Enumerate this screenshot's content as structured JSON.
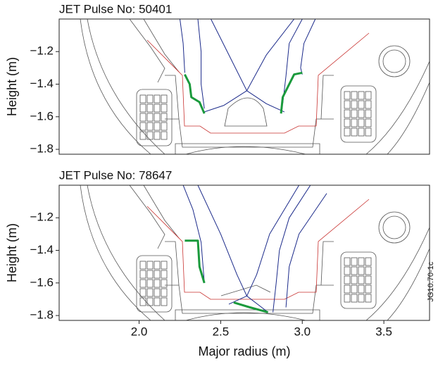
{
  "figure_id": "JG10.70-1c",
  "chart_data": [
    {
      "type": "line",
      "title": "JET Pulse No: 50401",
      "ylabel": "Height (m)",
      "xlim": [
        1.51,
        3.78
      ],
      "ylim": [
        -1.83,
        -1.0
      ],
      "yticks": [
        {
          "value": -1.2,
          "label": "−1.2"
        },
        {
          "value": -1.4,
          "label": "−1.4"
        },
        {
          "value": -1.6,
          "label": "−1.6"
        },
        {
          "value": -1.8,
          "label": "−1.8"
        }
      ],
      "series": [
        {
          "color": "#1b2a8a",
          "line_width": 1,
          "x": [
            2.25,
            2.27,
            2.28
          ],
          "values": [
            -1.0,
            -1.15,
            -1.33
          ]
        },
        {
          "color": "#1b2a8a",
          "line_width": 1,
          "x": [
            2.36,
            2.38,
            2.38,
            2.4
          ],
          "values": [
            -1.0,
            -1.2,
            -1.4,
            -1.55
          ]
        },
        {
          "color": "#1b2a8a",
          "line_width": 1,
          "x": [
            2.44,
            2.55,
            2.66,
            2.78,
            2.89
          ],
          "values": [
            -1.0,
            -1.22,
            -1.44,
            -1.52,
            -1.57
          ]
        },
        {
          "color": "#1b2a8a",
          "line_width": 1,
          "x": [
            2.95,
            2.78,
            2.66,
            2.52,
            2.4
          ],
          "values": [
            -1.0,
            -1.22,
            -1.44,
            -1.53,
            -1.57
          ]
        },
        {
          "color": "#1b2a8a",
          "line_width": 1,
          "x": [
            3.0,
            2.92,
            2.9,
            2.88
          ],
          "values": [
            -1.0,
            -1.15,
            -1.35,
            -1.52
          ]
        },
        {
          "color": "#1b2a8a",
          "line_width": 1,
          "x": [
            3.08,
            3.01,
            2.99,
            3.0
          ],
          "values": [
            -1.0,
            -1.15,
            -1.3,
            -1.34
          ]
        },
        {
          "color": "#1a9a3c",
          "line_width": 3,
          "x": [
            2.28,
            2.31,
            2.32,
            2.37,
            2.4
          ],
          "values": [
            -1.34,
            -1.4,
            -1.48,
            -1.51,
            -1.58
          ]
        },
        {
          "color": "#1a9a3c",
          "line_width": 3,
          "x": [
            3.0,
            2.95,
            2.91,
            2.88,
            2.87
          ],
          "values": [
            -1.33,
            -1.34,
            -1.42,
            -1.48,
            -1.58
          ]
        }
      ]
    },
    {
      "type": "line",
      "title": "JET Pulse No: 78647",
      "ylabel": "Height (m)",
      "xlabel": "Major radius (m)",
      "xlim": [
        1.51,
        3.78
      ],
      "ylim": [
        -1.83,
        -1.0
      ],
      "xticks": [
        {
          "value": 2.0,
          "label": "2.0"
        },
        {
          "value": 2.5,
          "label": "2.5"
        },
        {
          "value": 3.0,
          "label": "3.0"
        },
        {
          "value": 3.5,
          "label": "3.5"
        }
      ],
      "yticks": [
        {
          "value": -1.2,
          "label": "−1.2"
        },
        {
          "value": -1.4,
          "label": "−1.4"
        },
        {
          "value": -1.6,
          "label": "−1.6"
        },
        {
          "value": -1.8,
          "label": "−1.8"
        }
      ],
      "series": [
        {
          "color": "#1b2a8a",
          "line_width": 1,
          "x": [
            2.27,
            2.33,
            2.38,
            2.4
          ],
          "values": [
            -1.0,
            -1.15,
            -1.35,
            -1.6
          ]
        },
        {
          "color": "#1b2a8a",
          "line_width": 1,
          "x": [
            2.36,
            2.5,
            2.6,
            2.66,
            2.79
          ],
          "values": [
            -1.0,
            -1.3,
            -1.55,
            -1.68,
            -1.78
          ]
        },
        {
          "color": "#1b2a8a",
          "line_width": 1,
          "x": [
            2.98,
            2.8,
            2.72,
            2.66,
            2.55
          ],
          "values": [
            -1.0,
            -1.3,
            -1.55,
            -1.68,
            -1.73
          ]
        },
        {
          "color": "#1b2a8a",
          "line_width": 1,
          "x": [
            3.05,
            2.92,
            2.86,
            2.84,
            2.82
          ],
          "values": [
            -1.0,
            -1.2,
            -1.4,
            -1.6,
            -1.78
          ]
        },
        {
          "color": "#1b2a8a",
          "line_width": 1,
          "x": [
            3.15,
            2.98,
            2.92,
            2.9
          ],
          "values": [
            -1.05,
            -1.3,
            -1.5,
            -1.75
          ]
        },
        {
          "color": "#1a9a3c",
          "line_width": 3,
          "x": [
            2.28,
            2.36,
            2.37,
            2.4
          ],
          "values": [
            -1.34,
            -1.34,
            -1.5,
            -1.6
          ]
        },
        {
          "color": "#1a9a3c",
          "line_width": 3,
          "x": [
            2.58,
            2.68,
            2.79
          ],
          "values": [
            -1.72,
            -1.75,
            -1.78
          ]
        }
      ]
    }
  ]
}
